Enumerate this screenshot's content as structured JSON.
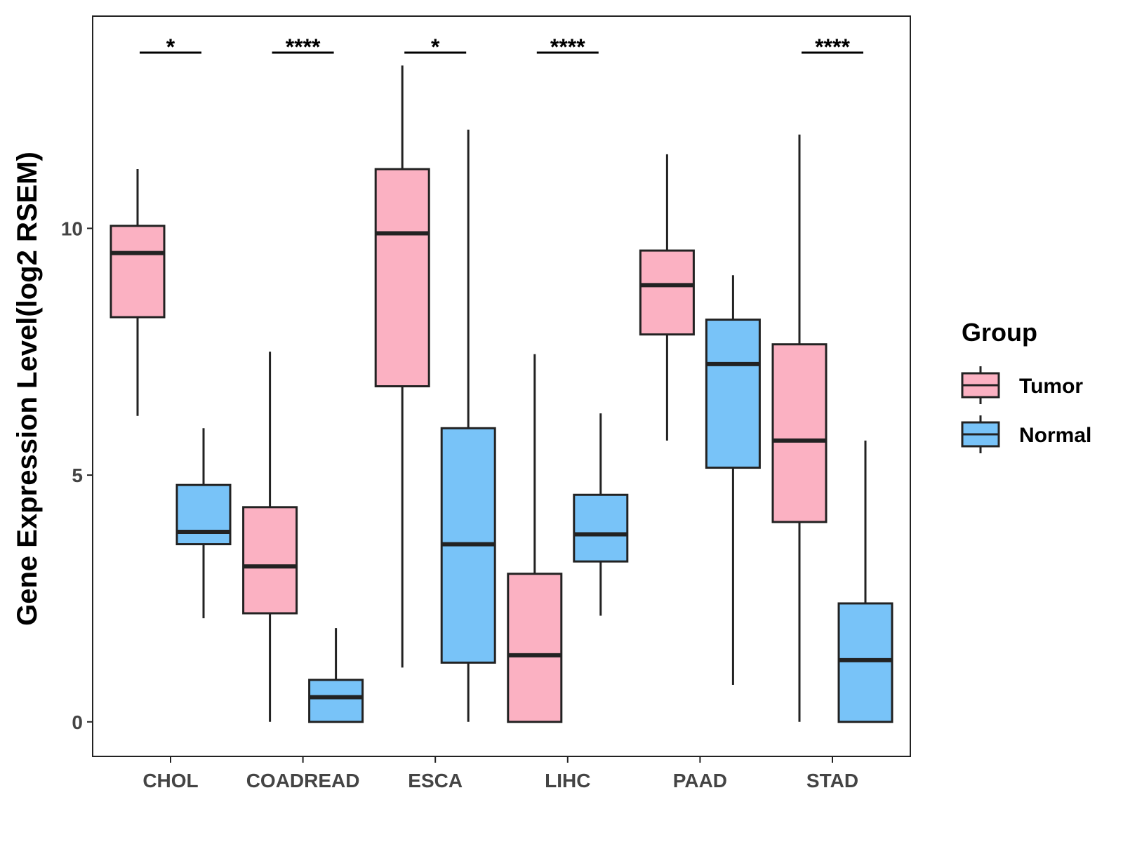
{
  "chart_data": {
    "type": "boxplot",
    "title": "",
    "xlabel": "",
    "ylabel": "Gene Expression Level(log2 RSEM)",
    "ylim": [
      -0.7,
      14.3
    ],
    "yticks": [
      0,
      5,
      10
    ],
    "grid": false,
    "categories": [
      "CHOL",
      "COADREAD",
      "ESCA",
      "LIHC",
      "PAAD",
      "STAD"
    ],
    "series": [
      {
        "name": "Tumor",
        "color": "#FBB1C2",
        "boxes": [
          {
            "category": "CHOL",
            "min": 6.2,
            "q1": 8.2,
            "median": 9.5,
            "q3": 10.05,
            "max": 11.2
          },
          {
            "category": "COADREAD",
            "min": 0.0,
            "q1": 2.2,
            "median": 3.15,
            "q3": 4.35,
            "max": 7.5
          },
          {
            "category": "ESCA",
            "min": 1.1,
            "q1": 6.8,
            "median": 9.9,
            "q3": 11.2,
            "max": 13.3
          },
          {
            "category": "LIHC",
            "min": 0.0,
            "q1": 0.0,
            "median": 1.35,
            "q3": 3.0,
            "max": 7.45
          },
          {
            "category": "PAAD",
            "min": 5.7,
            "q1": 7.85,
            "median": 8.85,
            "q3": 9.55,
            "max": 11.5
          },
          {
            "category": "STAD",
            "min": 0.0,
            "q1": 4.05,
            "median": 5.7,
            "q3": 7.65,
            "max": 11.9
          }
        ]
      },
      {
        "name": "Normal",
        "color": "#78C3F8",
        "boxes": [
          {
            "category": "CHOL",
            "min": 2.1,
            "q1": 3.6,
            "median": 3.85,
            "q3": 4.8,
            "max": 5.95
          },
          {
            "category": "COADREAD",
            "min": 0.0,
            "q1": 0.0,
            "median": 0.5,
            "q3": 0.85,
            "max": 1.9
          },
          {
            "category": "ESCA",
            "min": 0.0,
            "q1": 1.2,
            "median": 3.6,
            "q3": 5.95,
            "max": 12.0
          },
          {
            "category": "LIHC",
            "min": 2.15,
            "q1": 3.25,
            "median": 3.8,
            "q3": 4.6,
            "max": 6.25
          },
          {
            "category": "PAAD",
            "min": 0.75,
            "q1": 5.15,
            "median": 7.25,
            "q3": 8.15,
            "max": 9.05
          },
          {
            "category": "STAD",
            "min": 0.0,
            "q1": 0.0,
            "median": 1.25,
            "q3": 2.4,
            "max": 5.7
          }
        ]
      }
    ],
    "significance": [
      {
        "category": "CHOL",
        "label": "*"
      },
      {
        "category": "COADREAD",
        "label": "****"
      },
      {
        "category": "ESCA",
        "label": "*"
      },
      {
        "category": "LIHC",
        "label": "****"
      },
      {
        "category": "PAAD",
        "label": ""
      },
      {
        "category": "STAD",
        "label": "****"
      }
    ],
    "legend": {
      "title": "Group",
      "position": "right",
      "entries": [
        {
          "label": "Tumor",
          "color": "#FBB1C2"
        },
        {
          "label": "Normal",
          "color": "#78C3F8"
        }
      ]
    }
  }
}
